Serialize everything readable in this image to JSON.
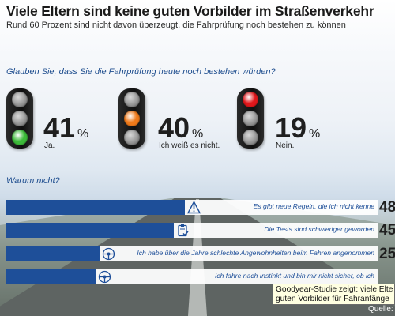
{
  "header": {
    "title": "Viele Eltern sind keine guten Vorbilder im Straßenverkehr",
    "subtitle": "Rund 60 Prozent sind nicht davon überzeugt, die Fahrprüfung noch bestehen zu können"
  },
  "question": "Glauben Sie, dass Sie die Fahrprüfung heute noch bestehen würden?",
  "answers": [
    {
      "value": "41",
      "unit": "%",
      "label": "Ja.",
      "active_light": "green"
    },
    {
      "value": "40",
      "unit": "%",
      "label": "Ich weiß es nicht.",
      "active_light": "orange"
    },
    {
      "value": "19",
      "unit": "%",
      "label": "Nein.",
      "active_light": "red"
    }
  ],
  "colors": {
    "red": "#e0171b",
    "orange": "#f07a1a",
    "green": "#3dbb3a",
    "bar": "#1e4f99",
    "question": "#1f4e8f"
  },
  "reasons_heading": "Warum nicht?",
  "chart_data": [
    {
      "type": "bar",
      "title": "Glauben Sie, dass Sie die Fahrprüfung heute noch bestehen würden?",
      "categories": [
        "Ja.",
        "Ich weiß es nicht.",
        "Nein."
      ],
      "values": [
        41,
        40,
        19
      ],
      "unit": "%",
      "rendering": "traffic lights with percentage values"
    },
    {
      "type": "bar",
      "orientation": "horizontal",
      "title": "Warum nicht?",
      "categories": [
        "Es gibt neue Regeln, die ich nicht kenne",
        "Die Tests sind schwieriger geworden",
        "Ich habe über die Jahre schlechte Angewohnheiten beim Fahren angenommen",
        "Ich fahre nach Instinkt und bin mir nicht sicher, ob ich"
      ],
      "values": [
        48,
        45,
        25,
        null
      ],
      "value_labels": [
        "48",
        "45",
        "25",
        ""
      ],
      "icons": [
        "warning-icon",
        "clipboard-check-icon",
        "steering-wheel-icon",
        "steering-wheel-icon"
      ],
      "xlim": [
        0,
        100
      ],
      "note": "bars rendered with pictogram icons; values partly cut off at right edge"
    }
  ],
  "tooltip": {
    "line1": "Goodyear-Studie zeigt: viele Elte",
    "line2": "guten Vorbilder für Fahranfänge"
  },
  "source": "Quelle:"
}
